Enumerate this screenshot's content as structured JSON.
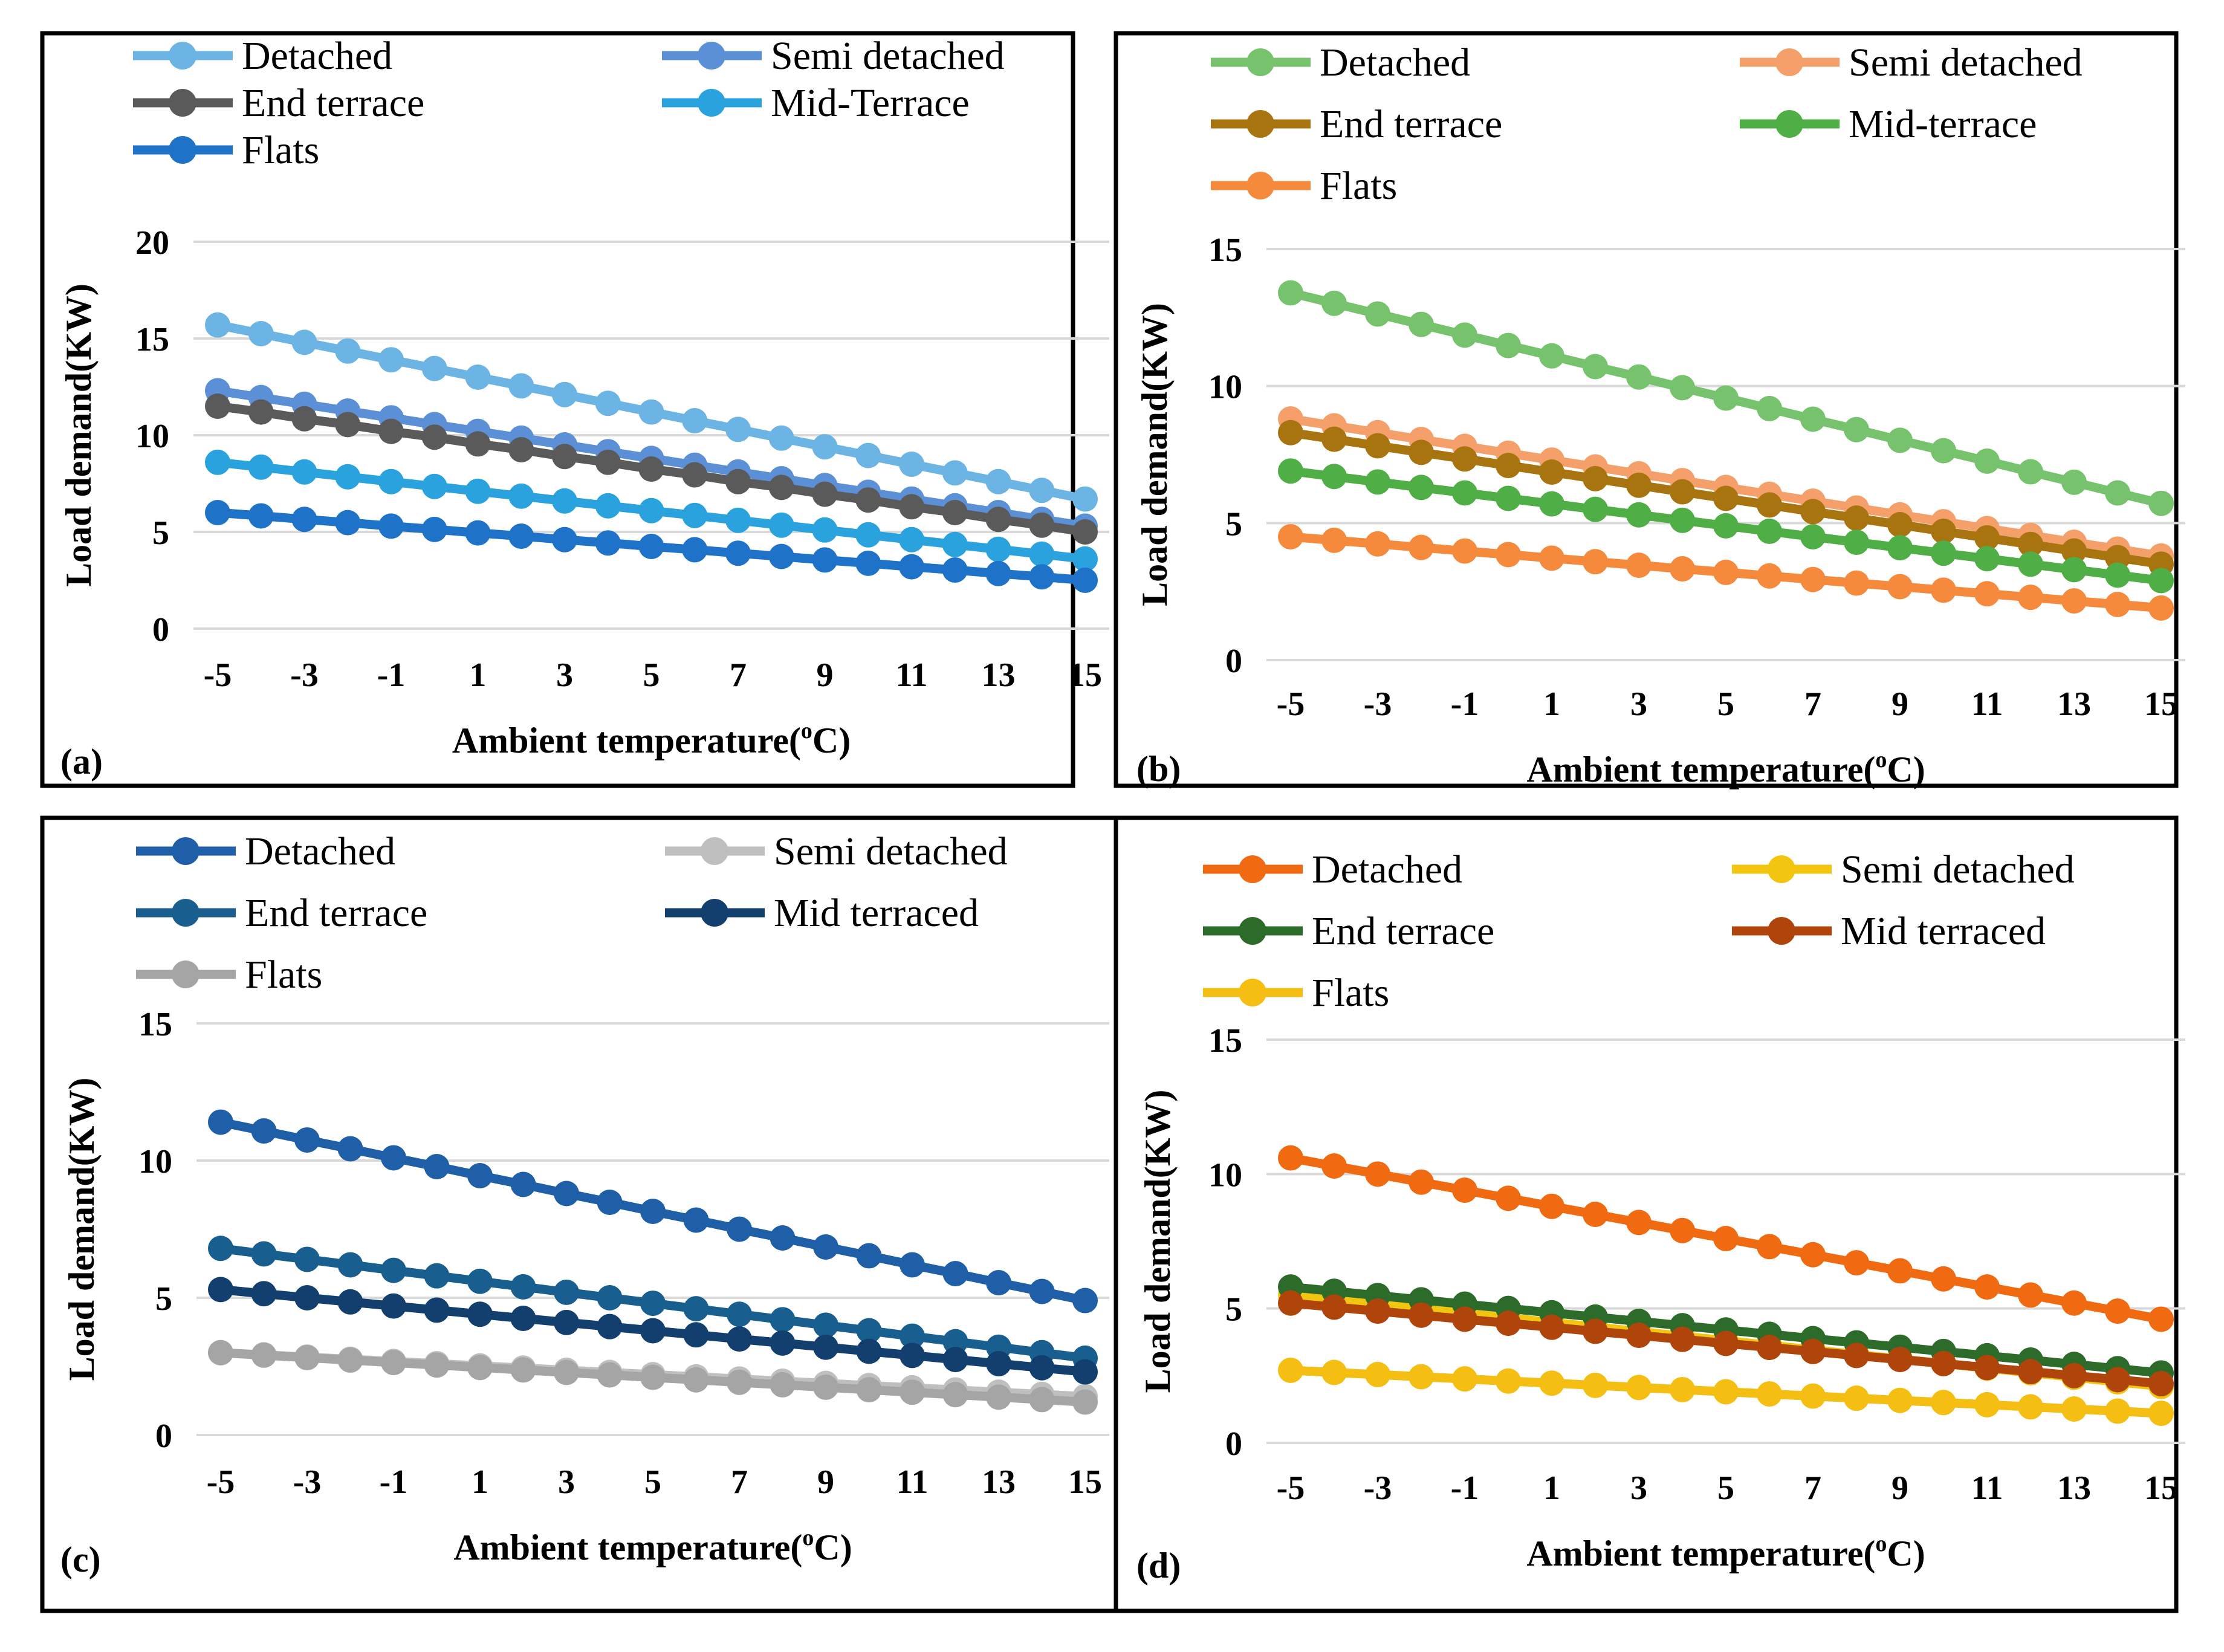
{
  "figure": {
    "x_label": "Ambient temperature(",
    "x_label_sup": "o",
    "x_label_end": "C)",
    "y_label": "Load demand(KW)"
  },
  "chart_data": [
    {
      "type": "line",
      "panel_label": "(a)",
      "xlabel": "Ambient temperature(oC)",
      "ylabel": "Load demand(KW)",
      "x": [
        -5,
        -4,
        -3,
        -2,
        -1,
        0,
        1,
        2,
        3,
        4,
        5,
        6,
        7,
        8,
        9,
        10,
        11,
        12,
        13,
        14,
        15
      ],
      "xticks": [
        "-5",
        "-3",
        "-1",
        "1",
        "3",
        "5",
        "7",
        "9",
        "11",
        "13",
        "15"
      ],
      "ylim": [
        0,
        20
      ],
      "yticks": [
        "0",
        "5",
        "10",
        "15",
        "20"
      ],
      "grid": true,
      "legend_position": "top",
      "series": [
        {
          "name": "Detached",
          "color": "#6cb4e4",
          "values": [
            15.7,
            15.25,
            14.8,
            14.35,
            13.9,
            13.45,
            13.0,
            12.55,
            12.1,
            11.65,
            11.2,
            10.75,
            10.3,
            9.85,
            9.4,
            8.95,
            8.5,
            8.05,
            7.6,
            7.15,
            6.7
          ]
        },
        {
          "name": "Semi detached",
          "color": "#5b8fd6",
          "values": [
            12.3,
            11.95,
            11.6,
            11.25,
            10.9,
            10.55,
            10.2,
            9.85,
            9.5,
            9.15,
            8.8,
            8.45,
            8.1,
            7.75,
            7.4,
            7.05,
            6.7,
            6.35,
            6.0,
            5.65,
            5.3
          ]
        },
        {
          "name": "End terrace",
          "color": "#5a5a5a",
          "values": [
            11.5,
            11.2,
            10.85,
            10.55,
            10.2,
            9.9,
            9.55,
            9.25,
            8.9,
            8.6,
            8.25,
            7.95,
            7.6,
            7.3,
            6.95,
            6.65,
            6.3,
            6.0,
            5.65,
            5.35,
            5.0
          ]
        },
        {
          "name": "Mid-Terrace",
          "color": "#2aa2de",
          "values": [
            8.6,
            8.35,
            8.1,
            7.85,
            7.6,
            7.35,
            7.1,
            6.85,
            6.6,
            6.35,
            6.1,
            5.85,
            5.6,
            5.35,
            5.1,
            4.85,
            4.6,
            4.35,
            4.1,
            3.85,
            3.6
          ]
        },
        {
          "name": "Flats",
          "color": "#1e73c8",
          "values": [
            6.0,
            5.83,
            5.65,
            5.48,
            5.3,
            5.13,
            4.95,
            4.78,
            4.6,
            4.43,
            4.25,
            4.08,
            3.9,
            3.73,
            3.55,
            3.38,
            3.2,
            3.03,
            2.85,
            2.68,
            2.5
          ]
        }
      ]
    },
    {
      "type": "line",
      "panel_label": "(b)",
      "xlabel": "Ambient temperature(oC)",
      "ylabel": "Load demand(KW)",
      "x": [
        -5,
        -4,
        -3,
        -2,
        -1,
        0,
        1,
        2,
        3,
        4,
        5,
        6,
        7,
        8,
        9,
        10,
        11,
        12,
        13,
        14,
        15
      ],
      "xticks": [
        "-5",
        "-3",
        "-1",
        "1",
        "3",
        "5",
        "7",
        "9",
        "11",
        "13",
        "15"
      ],
      "ylim": [
        0,
        15
      ],
      "yticks": [
        "0",
        "5",
        "10",
        "15"
      ],
      "grid": true,
      "legend_position": "top",
      "series": [
        {
          "name": "Detached",
          "color": "#76c26d",
          "values": [
            13.4,
            13.02,
            12.63,
            12.25,
            11.86,
            11.48,
            11.1,
            10.71,
            10.33,
            9.94,
            9.56,
            9.18,
            8.79,
            8.41,
            8.02,
            7.64,
            7.26,
            6.87,
            6.49,
            6.1,
            5.72
          ]
        },
        {
          "name": "Semi detached",
          "color": "#f5a06a",
          "values": [
            8.8,
            8.55,
            8.3,
            8.05,
            7.8,
            7.55,
            7.3,
            7.05,
            6.8,
            6.55,
            6.3,
            6.05,
            5.8,
            5.55,
            5.3,
            5.05,
            4.8,
            4.55,
            4.3,
            4.05,
            3.8
          ]
        },
        {
          "name": "End terrace",
          "color": "#a8740f",
          "values": [
            8.3,
            8.06,
            7.82,
            7.58,
            7.34,
            7.1,
            6.86,
            6.62,
            6.38,
            6.14,
            5.9,
            5.66,
            5.42,
            5.18,
            4.94,
            4.7,
            4.46,
            4.22,
            3.98,
            3.74,
            3.5
          ]
        },
        {
          "name": "Mid-terrace",
          "color": "#4fae45",
          "values": [
            6.9,
            6.7,
            6.5,
            6.3,
            6.1,
            5.9,
            5.7,
            5.5,
            5.3,
            5.1,
            4.9,
            4.7,
            4.5,
            4.3,
            4.1,
            3.9,
            3.7,
            3.5,
            3.3,
            3.1,
            2.9
          ]
        },
        {
          "name": "Flats",
          "color": "#f58a3c",
          "values": [
            4.5,
            4.37,
            4.24,
            4.11,
            3.98,
            3.85,
            3.72,
            3.59,
            3.46,
            3.33,
            3.2,
            3.07,
            2.94,
            2.81,
            2.68,
            2.55,
            2.42,
            2.29,
            2.16,
            2.03,
            1.9
          ]
        }
      ]
    },
    {
      "type": "line",
      "panel_label": "(c)",
      "xlabel": "Ambient temperature(oC)",
      "ylabel": "Load demand(KW)",
      "x": [
        -5,
        -4,
        -3,
        -2,
        -1,
        0,
        1,
        2,
        3,
        4,
        5,
        6,
        7,
        8,
        9,
        10,
        11,
        12,
        13,
        14,
        15
      ],
      "xticks": [
        "-5",
        "-3",
        "-1",
        "1",
        "3",
        "5",
        "7",
        "9",
        "11",
        "13",
        "15"
      ],
      "ylim": [
        0,
        15
      ],
      "yticks": [
        "0",
        "5",
        "10",
        "15"
      ],
      "grid": true,
      "legend_position": "top",
      "series": [
        {
          "name": "Detached",
          "color": "#1f5fa8",
          "values": [
            11.4,
            11.08,
            10.75,
            10.43,
            10.1,
            9.78,
            9.45,
            9.13,
            8.8,
            8.48,
            8.15,
            7.83,
            7.5,
            7.18,
            6.85,
            6.53,
            6.2,
            5.88,
            5.55,
            5.23,
            4.9
          ]
        },
        {
          "name": "Semi detached",
          "color": "#bfbfbf",
          "values": [
            3.0,
            2.92,
            2.84,
            2.76,
            2.68,
            2.6,
            2.52,
            2.44,
            2.36,
            2.28,
            2.2,
            2.12,
            2.04,
            1.96,
            1.88,
            1.8,
            1.72,
            1.64,
            1.56,
            1.48,
            1.4
          ]
        },
        {
          "name": "End terrace",
          "color": "#185f8f",
          "values": [
            6.8,
            6.6,
            6.4,
            6.2,
            6.0,
            5.8,
            5.6,
            5.4,
            5.2,
            5.0,
            4.8,
            4.6,
            4.4,
            4.2,
            4.0,
            3.8,
            3.6,
            3.4,
            3.2,
            3.0,
            2.8
          ]
        },
        {
          "name": "Mid terraced",
          "color": "#123f6e",
          "values": [
            5.3,
            5.15,
            5.0,
            4.85,
            4.7,
            4.55,
            4.4,
            4.25,
            4.1,
            3.95,
            3.8,
            3.65,
            3.5,
            3.35,
            3.2,
            3.05,
            2.9,
            2.75,
            2.6,
            2.45,
            2.3
          ]
        },
        {
          "name": "Flats",
          "color": "#a5a5a5",
          "values": [
            3.0,
            2.91,
            2.82,
            2.73,
            2.64,
            2.55,
            2.46,
            2.37,
            2.28,
            2.19,
            2.1,
            2.01,
            1.92,
            1.83,
            1.74,
            1.65,
            1.56,
            1.47,
            1.38,
            1.29,
            1.2
          ]
        }
      ]
    },
    {
      "type": "line",
      "panel_label": "(d)",
      "xlabel": "Ambient temperature(oC)",
      "ylabel": "Load demand(KW)",
      "x": [
        -5,
        -4,
        -3,
        -2,
        -1,
        0,
        1,
        2,
        3,
        4,
        5,
        6,
        7,
        8,
        9,
        10,
        11,
        12,
        13,
        14,
        15
      ],
      "xticks": [
        "-5",
        "-3",
        "-1",
        "1",
        "3",
        "5",
        "7",
        "9",
        "11",
        "13",
        "15"
      ],
      "ylim": [
        0,
        15
      ],
      "yticks": [
        "0",
        "5",
        "10",
        "15"
      ],
      "grid": true,
      "legend_position": "top",
      "series": [
        {
          "name": "Detached",
          "color": "#f06a12",
          "values": [
            10.6,
            10.3,
            10.0,
            9.7,
            9.4,
            9.1,
            8.8,
            8.5,
            8.2,
            7.9,
            7.6,
            7.3,
            7.0,
            6.7,
            6.4,
            6.1,
            5.8,
            5.5,
            5.2,
            4.9,
            4.6
          ]
        },
        {
          "name": "Semi detached",
          "color": "#f2c510",
          "values": [
            5.5,
            5.33,
            5.16,
            4.99,
            4.82,
            4.65,
            4.48,
            4.31,
            4.14,
            3.97,
            3.8,
            3.63,
            3.46,
            3.29,
            3.12,
            2.95,
            2.78,
            2.61,
            2.44,
            2.27,
            2.1
          ]
        },
        {
          "name": "End terrace",
          "color": "#2d6b2a",
          "values": [
            5.8,
            5.64,
            5.48,
            5.32,
            5.16,
            5.0,
            4.84,
            4.68,
            4.52,
            4.36,
            4.2,
            4.04,
            3.88,
            3.72,
            3.56,
            3.4,
            3.24,
            3.08,
            2.92,
            2.76,
            2.6
          ]
        },
        {
          "name": "Mid terraced",
          "color": "#b0450c",
          "values": [
            5.2,
            5.05,
            4.9,
            4.75,
            4.6,
            4.45,
            4.3,
            4.15,
            4.0,
            3.85,
            3.7,
            3.55,
            3.4,
            3.25,
            3.1,
            2.95,
            2.8,
            2.65,
            2.5,
            2.35,
            2.2
          ]
        },
        {
          "name": "Flats",
          "color": "#f5be13",
          "values": [
            2.7,
            2.62,
            2.54,
            2.46,
            2.38,
            2.3,
            2.22,
            2.14,
            2.06,
            1.98,
            1.9,
            1.82,
            1.74,
            1.66,
            1.58,
            1.5,
            1.42,
            1.34,
            1.26,
            1.18,
            1.1
          ]
        }
      ]
    }
  ]
}
